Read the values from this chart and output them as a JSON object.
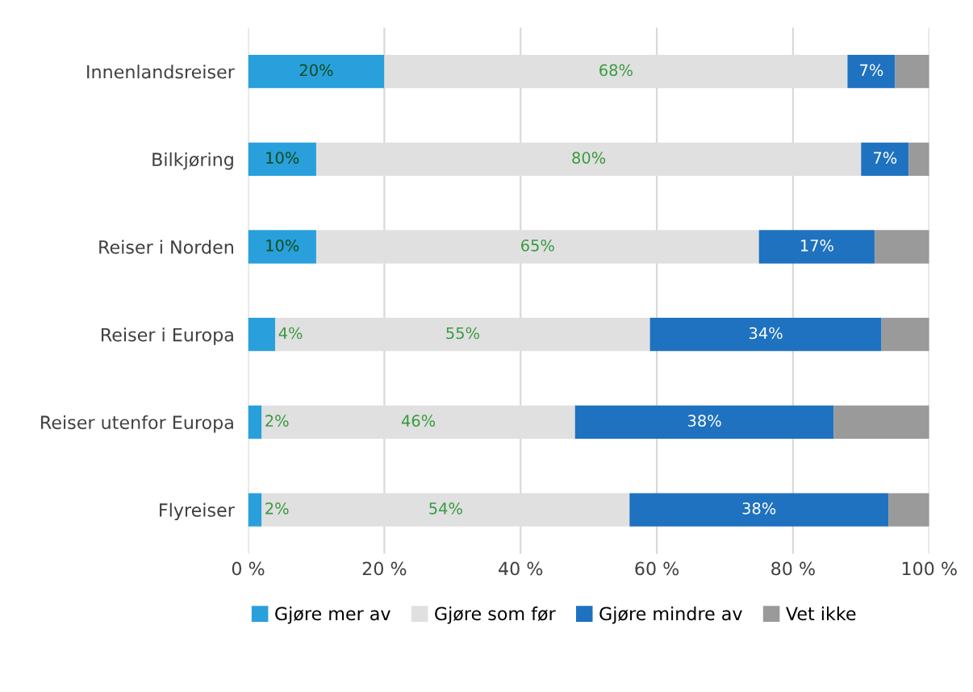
{
  "chart_data": {
    "type": "bar",
    "orientation": "horizontal",
    "stacked": true,
    "categories": [
      "Innenlandsreiser",
      "Bilkjøring",
      "Reiser i Norden",
      "Reiser i Europa",
      "Reiser utenfor Europa",
      "Flyreiser"
    ],
    "series": [
      {
        "name": "Gjøre mer av",
        "color": "#29a0dc",
        "values": [
          20,
          10,
          10,
          4,
          2,
          2
        ],
        "value_labels": [
          "20%",
          "10%",
          "10%",
          "4%",
          "2%",
          "2%"
        ]
      },
      {
        "name": "Gjøre som før",
        "color": "#e0e0e0",
        "values": [
          68,
          80,
          65,
          55,
          46,
          54
        ],
        "value_labels": [
          "68%",
          "80%",
          "65%",
          "55%",
          "46%",
          "54%"
        ]
      },
      {
        "name": "Gjøre mindre av",
        "color": "#1f72bf",
        "values": [
          7,
          7,
          17,
          34,
          38,
          38
        ],
        "value_labels": [
          "7%",
          "7%",
          "17%",
          "34%",
          "38%",
          "38%"
        ]
      },
      {
        "name": "Vet ikke",
        "color": "#9a9a9a",
        "values": [
          5,
          3,
          8,
          7,
          14,
          6
        ]
      }
    ],
    "xlim": [
      0,
      100
    ],
    "xticks": [
      {
        "value": 0,
        "label": "0 %"
      },
      {
        "value": 20,
        "label": "20 %"
      },
      {
        "value": 40,
        "label": "40 %"
      },
      {
        "value": 60,
        "label": "60 %"
      },
      {
        "value": 80,
        "label": "80 %"
      },
      {
        "value": 100,
        "label": "100 %"
      }
    ],
    "grid": "x",
    "legend": "bottom"
  }
}
